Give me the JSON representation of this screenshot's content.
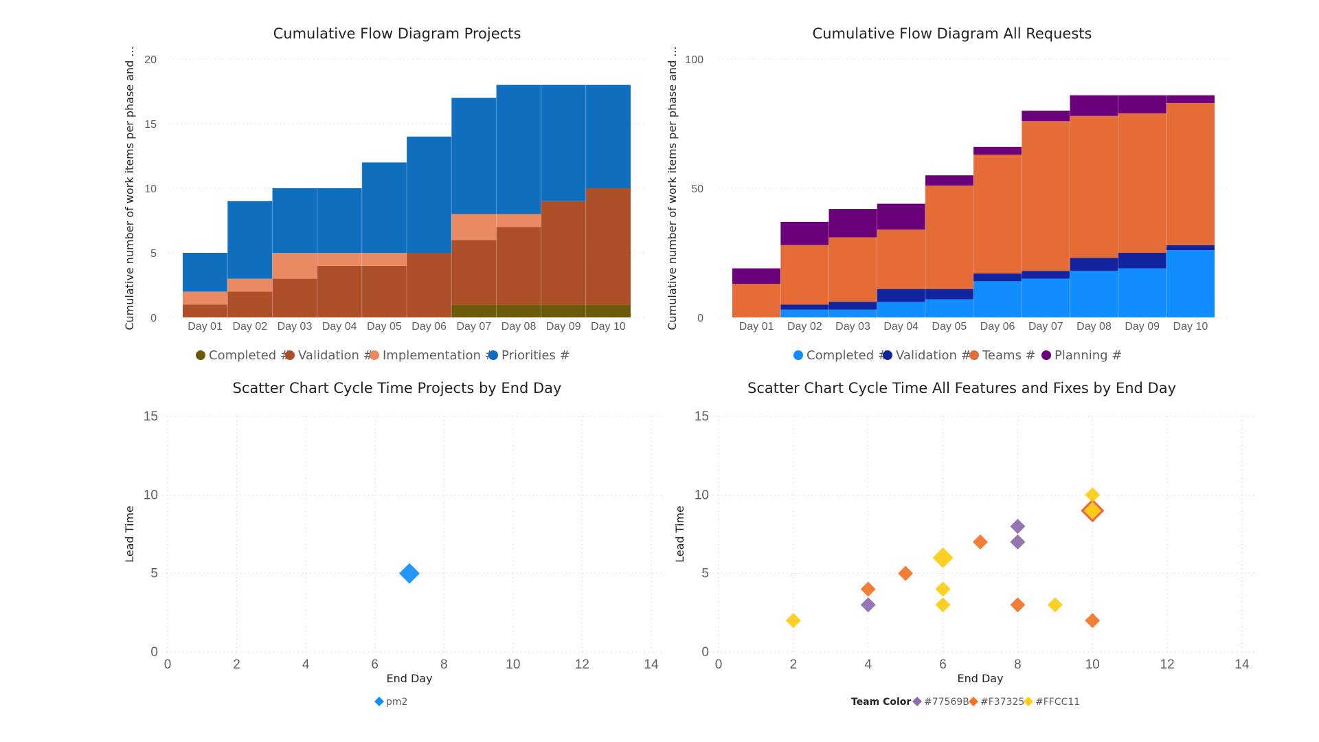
{
  "chart_data": [
    {
      "type": "area",
      "subtype": "stacked-step",
      "title": "Cumulative Flow Diagram Projects",
      "ylabel": "Cumulative number of work items per phase and ...",
      "ylim": [
        0,
        20
      ],
      "yticks": [
        0,
        5,
        10,
        15,
        20
      ],
      "categories": [
        "Day 01",
        "Day 02",
        "Day 03",
        "Day 04",
        "Day 05",
        "Day 06",
        "Day 07",
        "Day 08",
        "Day 09",
        "Day 10"
      ],
      "legend_position": "bottom",
      "series": [
        {
          "name": "Completed #",
          "color": "#6b5a0a",
          "values": [
            0,
            0,
            0,
            0,
            0,
            0,
            1,
            1,
            1,
            1
          ]
        },
        {
          "name": "Validation #",
          "color": "#ad4f28",
          "values": [
            1,
            2,
            3,
            4,
            4,
            5,
            5,
            6,
            8,
            9
          ]
        },
        {
          "name": "Implementation #",
          "color": "#ea8a63",
          "values": [
            1,
            1,
            2,
            1,
            1,
            0,
            2,
            1,
            0,
            0
          ]
        },
        {
          "name": "Priorities #",
          "color": "#106ebe",
          "values": [
            3,
            6,
            5,
            5,
            7,
            9,
            9,
            10,
            9,
            8
          ]
        }
      ]
    },
    {
      "type": "area",
      "subtype": "stacked-step",
      "title": "Cumulative Flow Diagram All Requests",
      "ylabel": "Cumulative number of work items per phase and ...",
      "ylim": [
        0,
        100
      ],
      "yticks": [
        0,
        50,
        100
      ],
      "categories": [
        "Day 01",
        "Day 02",
        "Day 03",
        "Day 04",
        "Day 05",
        "Day 06",
        "Day 07",
        "Day 08",
        "Day 09",
        "Day 10"
      ],
      "legend_position": "bottom",
      "series": [
        {
          "name": "Completed #",
          "color": "#118dff",
          "values": [
            0,
            3,
            3,
            6,
            7,
            14,
            15,
            18,
            19,
            26
          ]
        },
        {
          "name": "Validation #",
          "color": "#12239e",
          "values": [
            0,
            2,
            3,
            5,
            4,
            3,
            3,
            5,
            6,
            2
          ]
        },
        {
          "name": "Teams #",
          "color": "#e66c37",
          "values": [
            13,
            23,
            25,
            23,
            40,
            46,
            58,
            55,
            54,
            55
          ]
        },
        {
          "name": "Planning #",
          "color": "#6b007b",
          "values": [
            6,
            9,
            11,
            10,
            4,
            3,
            4,
            8,
            7,
            3
          ]
        }
      ]
    },
    {
      "type": "scatter",
      "title": "Scatter Chart Cycle Time Projects by End Day",
      "xlabel": "End Day",
      "ylabel": "Lead Time",
      "xlim": [
        0,
        14
      ],
      "ylim": [
        0,
        15
      ],
      "xticks": [
        0,
        2,
        4,
        6,
        8,
        10,
        12,
        14
      ],
      "yticks": [
        0,
        5,
        10,
        15
      ],
      "legend_position": "bottom",
      "series": [
        {
          "name": "pm2",
          "color": "#118dff",
          "points": [
            {
              "x": 7,
              "y": 5,
              "big": true
            }
          ]
        }
      ]
    },
    {
      "type": "scatter",
      "title": "Scatter Chart Cycle Time All Features and Fixes by End Day",
      "xlabel": "End Day",
      "ylabel": "Lead Time",
      "xlim": [
        0,
        14
      ],
      "ylim": [
        0,
        15
      ],
      "xticks": [
        0,
        2,
        4,
        6,
        8,
        10,
        12,
        14
      ],
      "yticks": [
        0,
        5,
        10,
        15
      ],
      "legend_position": "bottom",
      "legend_title": "Team Color",
      "series": [
        {
          "name": "#77569B",
          "color": "#8b6aae",
          "points": [
            {
              "x": 4,
              "y": 3
            },
            {
              "x": 8,
              "y": 7
            },
            {
              "x": 8,
              "y": 8
            }
          ]
        },
        {
          "name": "#F37325",
          "color": "#f37325",
          "points": [
            {
              "x": 4,
              "y": 4
            },
            {
              "x": 5,
              "y": 5
            },
            {
              "x": 7,
              "y": 7
            },
            {
              "x": 8,
              "y": 3
            },
            {
              "x": 10,
              "y": 2
            },
            {
              "x": 10,
              "y": 9,
              "big": true
            }
          ]
        },
        {
          "name": "#FFCC11",
          "color": "#ffcc11",
          "points": [
            {
              "x": 2,
              "y": 2
            },
            {
              "x": 6,
              "y": 3
            },
            {
              "x": 6,
              "y": 4
            },
            {
              "x": 6,
              "y": 6,
              "big": true
            },
            {
              "x": 9,
              "y": 3
            },
            {
              "x": 10,
              "y": 10
            },
            {
              "x": 10,
              "y": 9
            }
          ]
        }
      ]
    }
  ]
}
